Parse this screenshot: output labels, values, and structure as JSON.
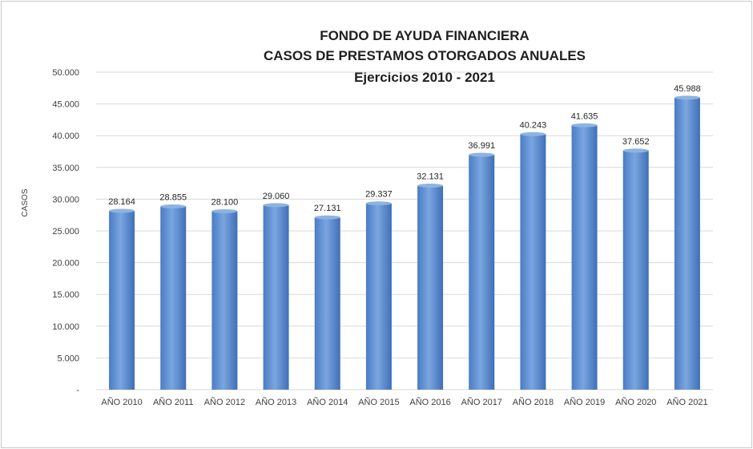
{
  "chart_data": {
    "type": "bar",
    "title_lines": [
      "FONDO DE AYUDA FINANCIERA",
      "CASOS DE PRESTAMOS  OTORGADOS ANUALES",
      "Ejercicios  2010 - 2021"
    ],
    "ylabel": "CASOS",
    "xlabel": "",
    "ylim": [
      0,
      50000
    ],
    "y_ticks": [
      "-",
      "5.000",
      "10.000",
      "15.000",
      "20.000",
      "25.000",
      "30.000",
      "35.000",
      "40.000",
      "45.000",
      "50.000"
    ],
    "grid": true,
    "categories": [
      "AÑO 2010",
      "AÑO 2011",
      "AÑO 2012",
      "AÑO 2013",
      "AÑO 2014",
      "AÑO 2015",
      "AÑO 2016",
      "AÑO 2017",
      "AÑO 2018",
      "AÑO 2019",
      "AÑO 2020",
      "AÑO 2021"
    ],
    "values": [
      28164,
      28855,
      28100,
      29060,
      27131,
      29337,
      32131,
      36991,
      40243,
      41635,
      37652,
      45988
    ],
    "value_labels": [
      "28.164",
      "28.855",
      "28.100",
      "29.060",
      "27.131",
      "29.337",
      "32.131",
      "36.991",
      "40.243",
      "41.635",
      "37.652",
      "45.988"
    ],
    "colors": {
      "bar_light": "#8db3e2",
      "bar_mid": "#5b8fd6",
      "bar_dark": "#3a6cb8",
      "grid": "#d9d9d9"
    }
  }
}
